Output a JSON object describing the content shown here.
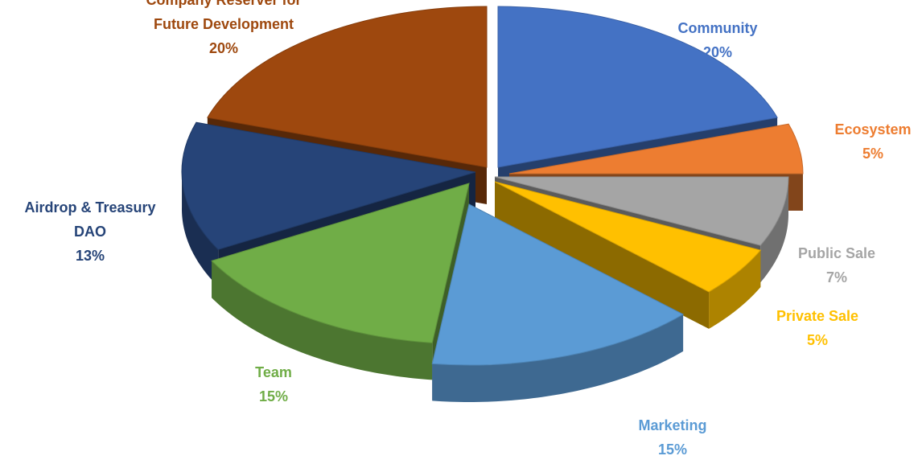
{
  "chart_data": {
    "type": "pie",
    "style": "3d-exploded",
    "title": "",
    "legend": "none",
    "slices": [
      {
        "label_lines": [
          "Community"
        ],
        "percent_label": "20%",
        "value": 20,
        "color": "#4472C4",
        "label_color": "#4472C4"
      },
      {
        "label_lines": [
          "Ecosystem"
        ],
        "percent_label": "5%",
        "value": 5,
        "color": "#ED7D31",
        "label_color": "#ED7D31"
      },
      {
        "label_lines": [
          "Public Sale"
        ],
        "percent_label": "7%",
        "value": 7,
        "color": "#A5A5A5",
        "label_color": "#A5A5A5"
      },
      {
        "label_lines": [
          "Private Sale"
        ],
        "percent_label": "5%",
        "value": 5,
        "color": "#FFC000",
        "label_color": "#FFC000"
      },
      {
        "label_lines": [
          "Marketing"
        ],
        "percent_label": "15%",
        "value": 15,
        "color": "#5B9BD5",
        "label_color": "#5B9BD5"
      },
      {
        "label_lines": [
          "Team"
        ],
        "percent_label": "15%",
        "value": 15,
        "color": "#70AD47",
        "label_color": "#70AD47"
      },
      {
        "label_lines": [
          "Airdrop & Treasury",
          "DAO"
        ],
        "percent_label": "13%",
        "value": 13,
        "color": "#264478",
        "label_color": "#264478"
      },
      {
        "label_lines": [
          "Company Reserver for",
          "Future Development"
        ],
        "percent_label": "20%",
        "value": 20,
        "color": "#9E480E",
        "label_color": "#9E480E"
      }
    ]
  }
}
